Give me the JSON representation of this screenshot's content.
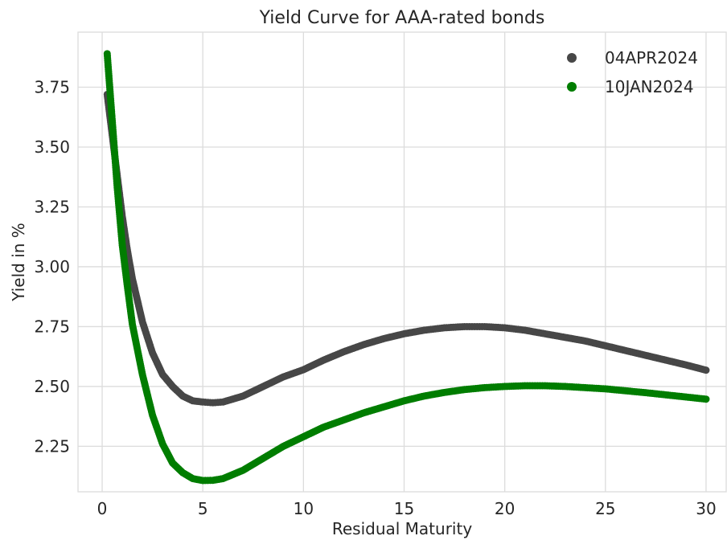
{
  "chart_data": {
    "type": "scatter",
    "title": "Yield Curve for AAA-rated bonds",
    "xlabel": "Residual Maturity",
    "ylabel": "Yield in %",
    "xlim": [
      -1.2,
      31
    ],
    "ylim": [
      2.06,
      3.98
    ],
    "xticks": [
      0,
      5,
      10,
      15,
      20,
      25,
      30
    ],
    "yticks": [
      2.25,
      2.5,
      2.75,
      3.0,
      3.25,
      3.5,
      3.75
    ],
    "ytick_labels": [
      "2.25",
      "2.50",
      "2.75",
      "3.00",
      "3.25",
      "3.50",
      "3.75"
    ],
    "grid": true,
    "legend_position": "top-right",
    "series": [
      {
        "name": "04APR2024",
        "color": "#474747",
        "points": [
          [
            0.25,
            3.72
          ],
          [
            0.5,
            3.55
          ],
          [
            0.75,
            3.38
          ],
          [
            1.0,
            3.21
          ],
          [
            1.25,
            3.07
          ],
          [
            1.5,
            2.95
          ],
          [
            2.0,
            2.77
          ],
          [
            2.5,
            2.64
          ],
          [
            3.0,
            2.55
          ],
          [
            3.5,
            2.5
          ],
          [
            4.0,
            2.46
          ],
          [
            4.5,
            2.44
          ],
          [
            5.0,
            2.435
          ],
          [
            5.5,
            2.432
          ],
          [
            6.0,
            2.435
          ],
          [
            7.0,
            2.46
          ],
          [
            8.0,
            2.5
          ],
          [
            9.0,
            2.54
          ],
          [
            10.0,
            2.57
          ],
          [
            11.0,
            2.61
          ],
          [
            12.0,
            2.645
          ],
          [
            13.0,
            2.675
          ],
          [
            14.0,
            2.7
          ],
          [
            15.0,
            2.72
          ],
          [
            16.0,
            2.735
          ],
          [
            17.0,
            2.745
          ],
          [
            18.0,
            2.75
          ],
          [
            19.0,
            2.75
          ],
          [
            20.0,
            2.745
          ],
          [
            21.0,
            2.735
          ],
          [
            22.0,
            2.72
          ],
          [
            23.0,
            2.705
          ],
          [
            24.0,
            2.69
          ],
          [
            25.0,
            2.67
          ],
          [
            26.0,
            2.65
          ],
          [
            27.0,
            2.63
          ],
          [
            28.0,
            2.61
          ],
          [
            29.0,
            2.59
          ],
          [
            30.0,
            2.568
          ]
        ]
      },
      {
        "name": "10JAN2024",
        "color": "#007d00",
        "points": [
          [
            0.25,
            3.89
          ],
          [
            0.5,
            3.61
          ],
          [
            0.75,
            3.33
          ],
          [
            1.0,
            3.09
          ],
          [
            1.25,
            2.92
          ],
          [
            1.5,
            2.76
          ],
          [
            2.0,
            2.55
          ],
          [
            2.5,
            2.38
          ],
          [
            3.0,
            2.26
          ],
          [
            3.5,
            2.18
          ],
          [
            4.0,
            2.14
          ],
          [
            4.5,
            2.115
          ],
          [
            5.0,
            2.107
          ],
          [
            5.5,
            2.108
          ],
          [
            6.0,
            2.115
          ],
          [
            7.0,
            2.15
          ],
          [
            8.0,
            2.2
          ],
          [
            9.0,
            2.25
          ],
          [
            10.0,
            2.29
          ],
          [
            11.0,
            2.33
          ],
          [
            12.0,
            2.36
          ],
          [
            13.0,
            2.39
          ],
          [
            14.0,
            2.415
          ],
          [
            15.0,
            2.44
          ],
          [
            16.0,
            2.46
          ],
          [
            17.0,
            2.475
          ],
          [
            18.0,
            2.487
          ],
          [
            19.0,
            2.495
          ],
          [
            20.0,
            2.5
          ],
          [
            21.0,
            2.503
          ],
          [
            22.0,
            2.503
          ],
          [
            23.0,
            2.5
          ],
          [
            24.0,
            2.495
          ],
          [
            25.0,
            2.49
          ],
          [
            26.0,
            2.482
          ],
          [
            27.0,
            2.474
          ],
          [
            28.0,
            2.465
          ],
          [
            29.0,
            2.456
          ],
          [
            30.0,
            2.447
          ]
        ]
      }
    ]
  }
}
